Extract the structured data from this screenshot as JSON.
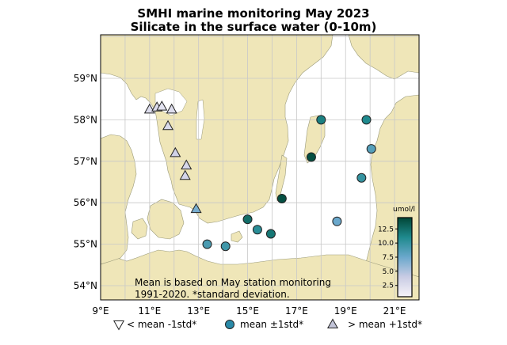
{
  "title_line1": "SMHI marine monitoring May 2023",
  "title_line2": "Silicate in the surface water (0-10m)",
  "note": "Mean is based on May station monitoring\n1991-2020. *standard deviation.",
  "lat_labels": [
    "59°N",
    "58°N",
    "57°N",
    "56°N",
    "55°N",
    "54°N"
  ],
  "lon_labels": [
    "9°E",
    "11°E",
    "13°E",
    "15°E",
    "17°E",
    "19°E",
    "21°E"
  ],
  "colorbar": {
    "unit": "umol/l",
    "ticks": [
      "12.5",
      "10.0",
      "7.5",
      "5.0",
      "2.5"
    ],
    "tick_values": [
      12.5,
      10.0,
      7.5,
      5.0,
      2.5
    ],
    "range": [
      0.5,
      14.5
    ]
  },
  "legend": [
    {
      "symbol": "triangle-down",
      "label": "< mean -1std*"
    },
    {
      "symbol": "circle",
      "label": "mean ±1std*"
    },
    {
      "symbol": "triangle-up",
      "label": "> mean +1std*"
    }
  ],
  "colors": {
    "land": "#efe6b8",
    "sea": "#ffffff",
    "grid": "#c8c8c8",
    "cb_low": "#f2f0f7",
    "cb_mid": "#3f90b8",
    "cb_high": "#014636",
    "above_mean": "#c2c4d8"
  },
  "stations": [
    {
      "type": "above",
      "lon": 11.0,
      "lat": 58.25,
      "value": 2.5
    },
    {
      "type": "above",
      "lon": 11.3,
      "lat": 58.3,
      "value": 2.5
    },
    {
      "type": "above",
      "lon": 11.5,
      "lat": 58.32,
      "value": 2.0
    },
    {
      "type": "above",
      "lon": 11.9,
      "lat": 58.25,
      "value": 2.5
    },
    {
      "type": "above",
      "lon": 11.75,
      "lat": 57.85,
      "value": 2.8
    },
    {
      "type": "above",
      "lon": 12.05,
      "lat": 57.2,
      "value": 3.5
    },
    {
      "type": "above",
      "lon": 12.5,
      "lat": 56.9,
      "value": 3.0
    },
    {
      "type": "above",
      "lon": 12.45,
      "lat": 56.65,
      "value": 3.2
    },
    {
      "type": "above",
      "lon": 12.9,
      "lat": 55.85,
      "value": 7.0
    },
    {
      "type": "mean",
      "lon": 13.35,
      "lat": 55.0,
      "value": 9.0
    },
    {
      "type": "mean",
      "lon": 14.1,
      "lat": 54.95,
      "value": 9.5
    },
    {
      "type": "mean",
      "lon": 15.0,
      "lat": 55.6,
      "value": 12.5
    },
    {
      "type": "mean",
      "lon": 15.4,
      "lat": 55.35,
      "value": 10.5
    },
    {
      "type": "mean",
      "lon": 15.95,
      "lat": 55.25,
      "value": 12.0
    },
    {
      "type": "mean",
      "lon": 16.4,
      "lat": 56.1,
      "value": 14.0
    },
    {
      "type": "mean",
      "lon": 17.6,
      "lat": 57.1,
      "value": 14.0
    },
    {
      "type": "mean",
      "lon": 18.0,
      "lat": 58.0,
      "value": 11.5
    },
    {
      "type": "mean",
      "lon": 18.65,
      "lat": 55.55,
      "value": 7.5
    },
    {
      "type": "mean",
      "lon": 19.65,
      "lat": 56.6,
      "value": 10.0
    },
    {
      "type": "mean",
      "lon": 19.85,
      "lat": 58.0,
      "value": 11.0
    },
    {
      "type": "mean",
      "lon": 20.05,
      "lat": 57.3,
      "value": 8.5
    }
  ]
}
